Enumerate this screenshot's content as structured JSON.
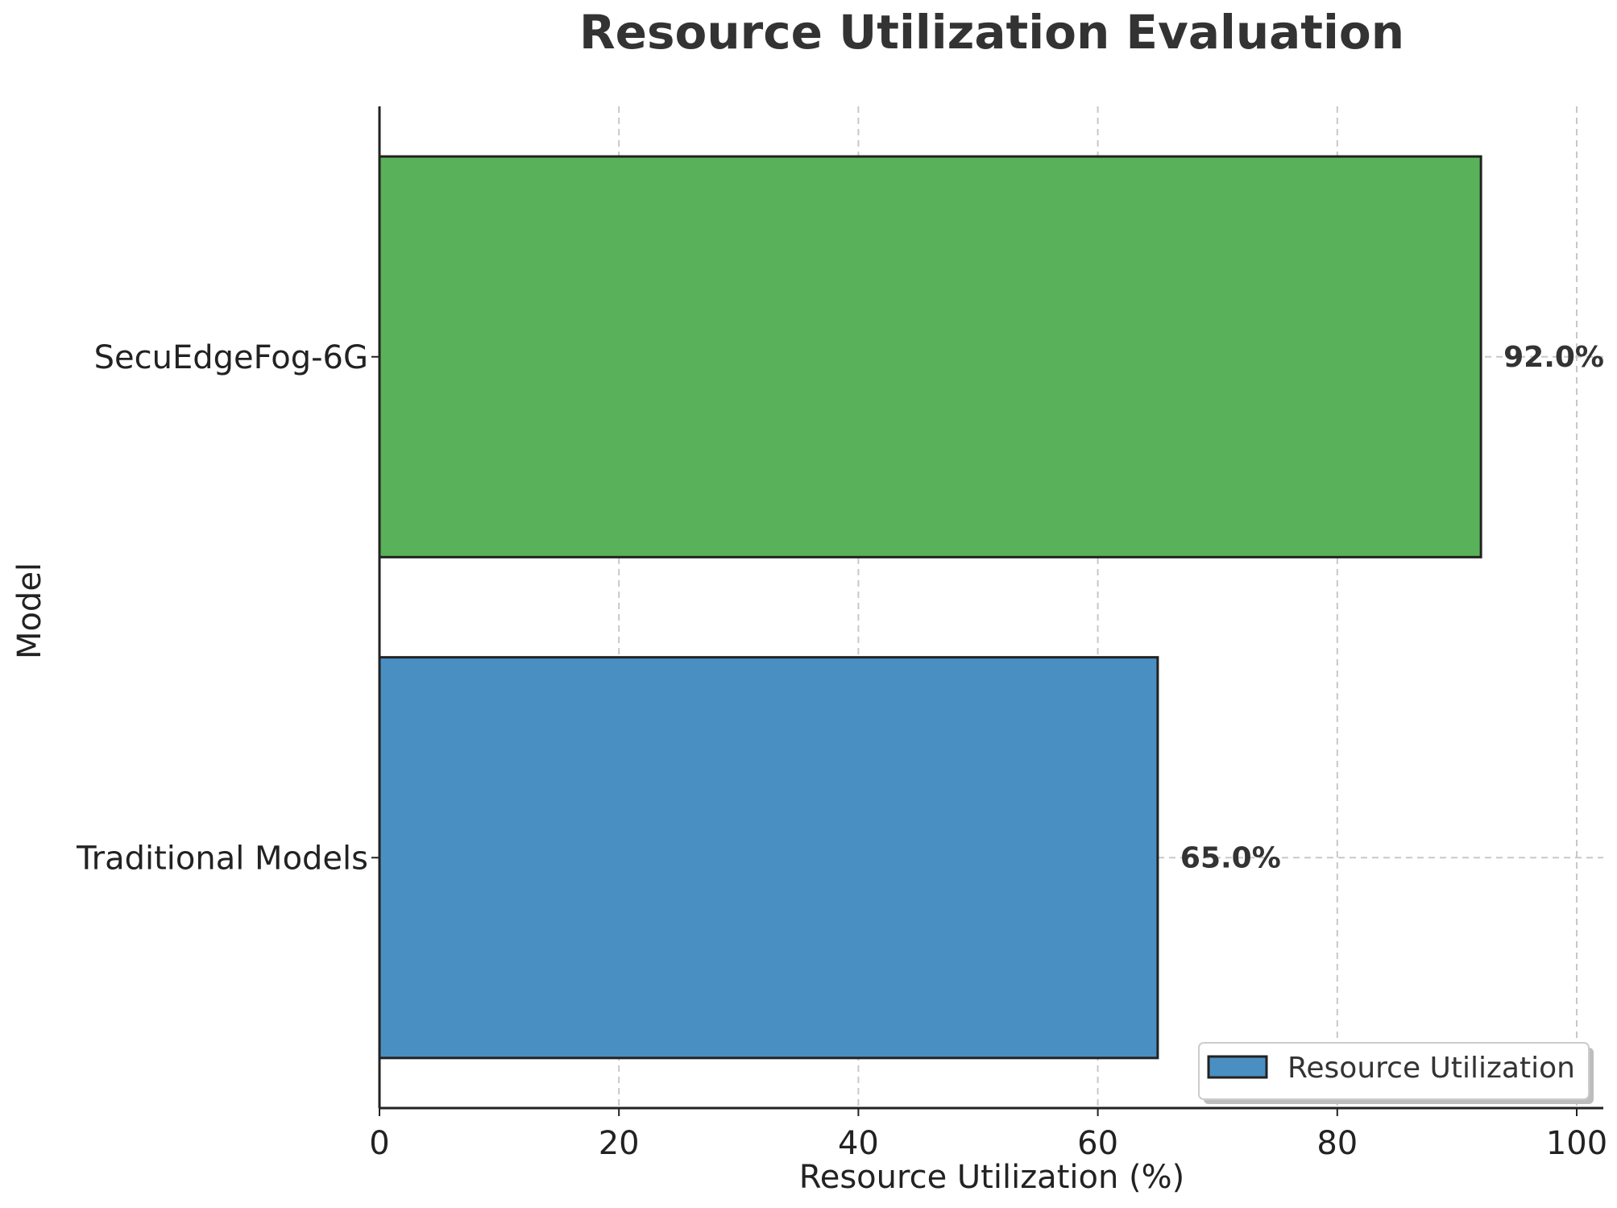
{
  "chart_data": {
    "type": "bar",
    "orientation": "horizontal",
    "title": "Resource Utilization Evaluation",
    "xlabel": "Resource Utilization (%)",
    "ylabel": "Model",
    "categories": [
      "SecuEdgeFog-6G",
      "Traditional Models"
    ],
    "values": [
      92.0,
      65.0
    ],
    "value_labels": [
      "92.0%",
      "65.0%"
    ],
    "bar_colors": [
      "#59b259",
      "#4a8fc2"
    ],
    "xlim": [
      0,
      100
    ],
    "xticks": [
      0,
      20,
      40,
      60,
      80,
      100
    ],
    "xtick_labels": [
      "0",
      "20",
      "40",
      "60",
      "80",
      "100"
    ],
    "grid": true,
    "legend": {
      "entries": [
        {
          "label": "Resource Utilization",
          "color": "#4a8fc2"
        }
      ],
      "placement": "lower-right"
    }
  }
}
